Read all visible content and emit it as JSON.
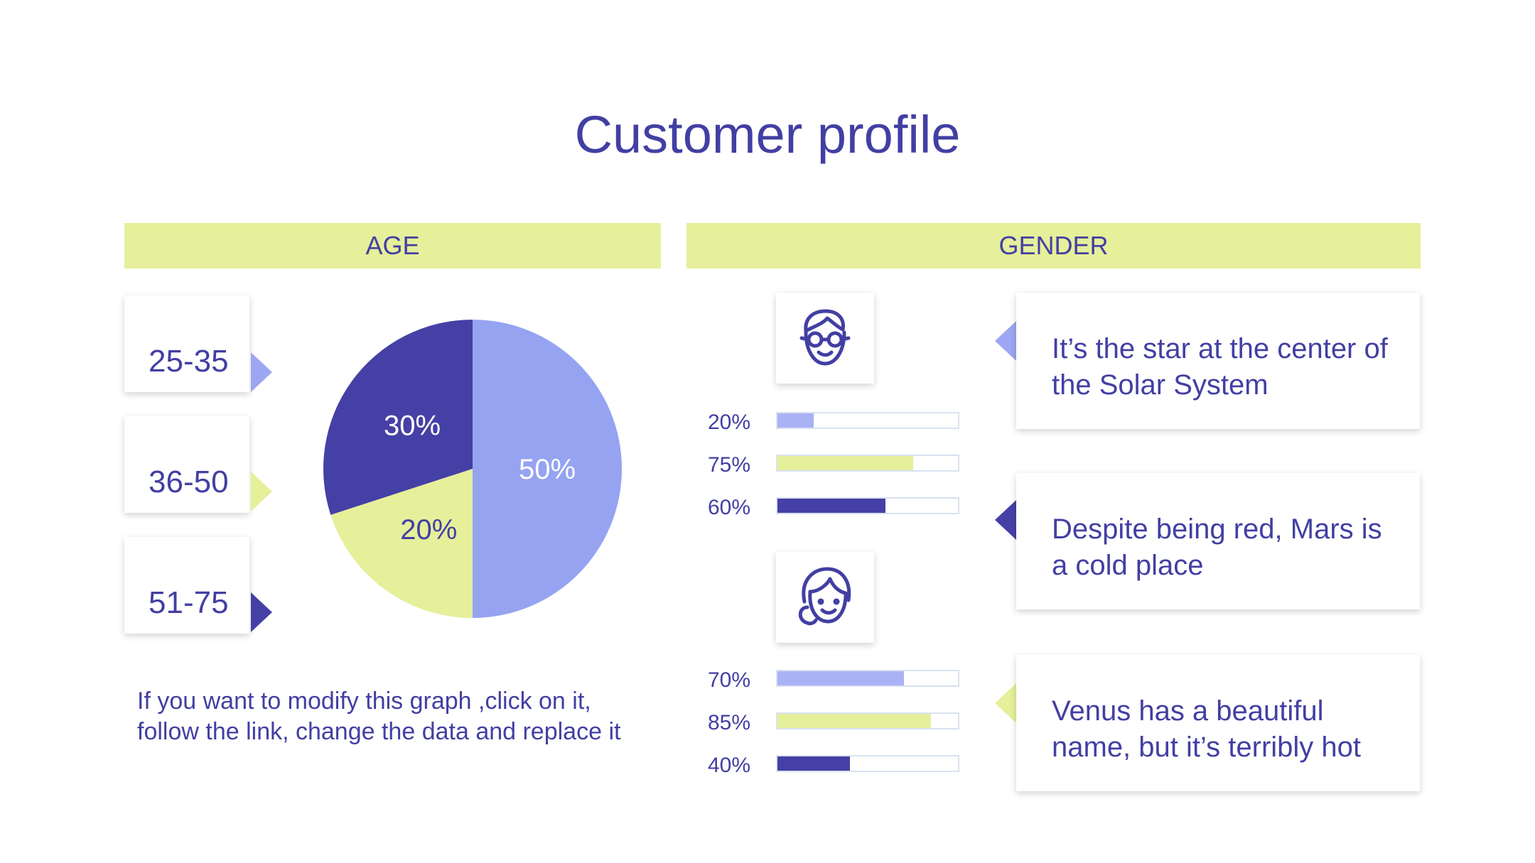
{
  "title": "Customer profile",
  "age_header": "AGE",
  "gender_header": "GENDER",
  "age_groups": [
    "25-35",
    "36-50",
    "51-75"
  ],
  "note": "If you want to modify this graph ,click on it, follow the link, change the data and replace it",
  "colors": {
    "periwinkle": "#95a3f1",
    "lime": "#e6ef9a",
    "indigo": "#4540a5",
    "text": "#423fa3"
  },
  "chart_data": [
    {
      "type": "pie",
      "categories": [
        "25-35",
        "36-50",
        "51-75"
      ],
      "values": [
        50,
        20,
        30
      ],
      "labels": [
        "50%",
        "20%",
        "30%"
      ],
      "colors": [
        "#95a3f1",
        "#e6ef9a",
        "#4540a5"
      ]
    },
    {
      "type": "bar",
      "orientation": "horizontal",
      "group_icon": "man-icon",
      "values": [
        20,
        75,
        60
      ],
      "labels": [
        "20%",
        "75%",
        "60%"
      ],
      "colors": [
        "#a9b2f5",
        "#e6ef9a",
        "#4540a5"
      ],
      "xlim": [
        0,
        100
      ]
    },
    {
      "type": "bar",
      "orientation": "horizontal",
      "group_icon": "woman-icon",
      "values": [
        70,
        85,
        40
      ],
      "labels": [
        "70%",
        "85%",
        "40%"
      ],
      "colors": [
        "#a9b2f5",
        "#e6ef9a",
        "#4540a5"
      ],
      "xlim": [
        0,
        100
      ]
    }
  ],
  "descriptions": [
    "It’s the star at the center of the Solar System",
    "Despite being red, Mars is a cold place",
    "Venus has a beautiful name, but it’s terribly hot"
  ]
}
